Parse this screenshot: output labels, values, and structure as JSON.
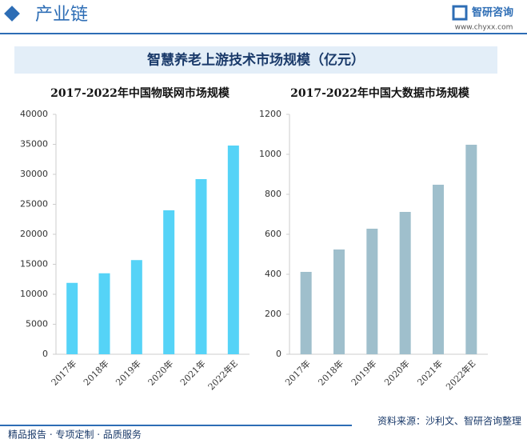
{
  "header": {
    "section": "产业链",
    "brand": "智研咨询",
    "site": "www.chyxx.com"
  },
  "main_title": "智慧养老上游技术市场规模（亿元）",
  "footer": {
    "slogan": "精品报告 · 专项定制 · 品质服务",
    "source": "资料来源：沙利文、智研咨询整理"
  },
  "chart_data": [
    {
      "type": "bar",
      "title": "2017-2022年中国物联网市场规模",
      "categories": [
        "2017年",
        "2018年",
        "2019年",
        "2020年",
        "2021年",
        "2022年E"
      ],
      "values": [
        11900,
        13500,
        15700,
        24000,
        29200,
        34800
      ],
      "color": "#55d3f7",
      "ylim": [
        0,
        40000
      ],
      "yticks": [
        0,
        5000,
        10000,
        15000,
        20000,
        25000,
        30000,
        35000,
        40000
      ]
    },
    {
      "type": "bar",
      "title": "2017-2022年中国大数据市场规模",
      "categories": [
        "2017年",
        "2018年",
        "2019年",
        "2020年",
        "2021年",
        "2022年E"
      ],
      "values": [
        412,
        524,
        628,
        712,
        848,
        1048
      ],
      "color": "#9fbfcc",
      "ylim": [
        0,
        1200
      ],
      "yticks": [
        0,
        200,
        400,
        600,
        800,
        1000,
        1200
      ]
    }
  ]
}
